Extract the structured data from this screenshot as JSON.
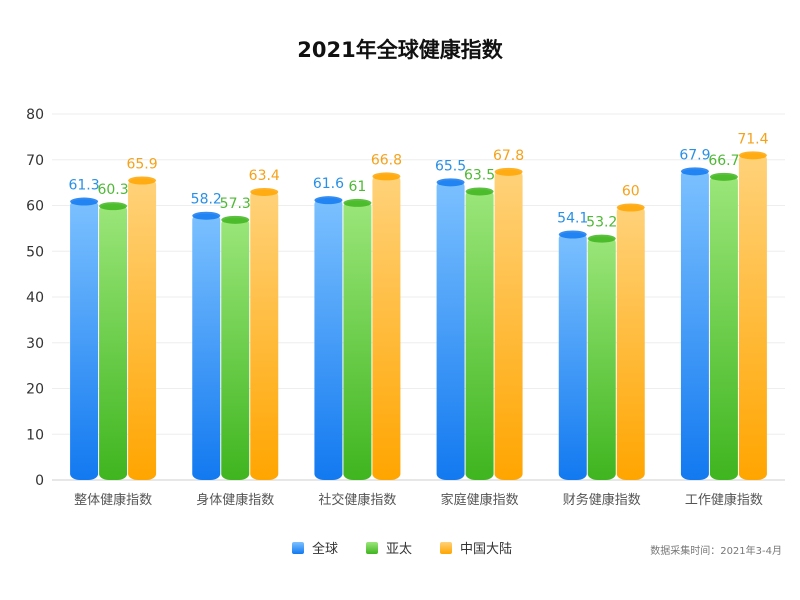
{
  "title": "2021年全球健康指数",
  "footnote": "数据采集时间：2021年3-4月",
  "colors": {
    "全球": {
      "light": "#7cc1ff",
      "dark": "#1279f0",
      "label": "#2a90e6"
    },
    "亚太": {
      "light": "#9be67a",
      "dark": "#3fb51f",
      "label": "#4fb836"
    },
    "中国大陆": {
      "light": "#ffd27a",
      "dark": "#ffa500",
      "label": "#f5a21b"
    }
  },
  "chart_data": {
    "type": "bar",
    "title": "2021年全球健康指数",
    "xlabel": "",
    "ylabel": "",
    "ylim": [
      0,
      80
    ],
    "yticks": [
      0,
      10,
      20,
      30,
      40,
      50,
      60,
      70,
      80
    ],
    "grid": true,
    "legend_position": "bottom",
    "categories": [
      "整体健康指数",
      "身体健康指数",
      "社交健康指数",
      "家庭健康指数",
      "财务健康指数",
      "工作健康指数"
    ],
    "series": [
      {
        "name": "全球",
        "values": [
          61.3,
          58.2,
          61.6,
          65.5,
          54.1,
          67.9
        ],
        "labels": [
          "61.3",
          "58.2",
          "61.6",
          "65.5",
          "54.1",
          "67.9"
        ]
      },
      {
        "name": "亚太",
        "values": [
          60.3,
          57.3,
          61,
          63.5,
          53.2,
          66.7
        ],
        "labels": [
          "60.3",
          "57.3",
          "61",
          "63.5",
          "53.2",
          "66.7"
        ]
      },
      {
        "name": "中国大陆",
        "values": [
          65.9,
          63.4,
          66.8,
          67.8,
          60,
          71.4
        ],
        "labels": [
          "65.9",
          "63.4",
          "66.8",
          "67.8",
          "60",
          "71.4"
        ]
      }
    ]
  }
}
